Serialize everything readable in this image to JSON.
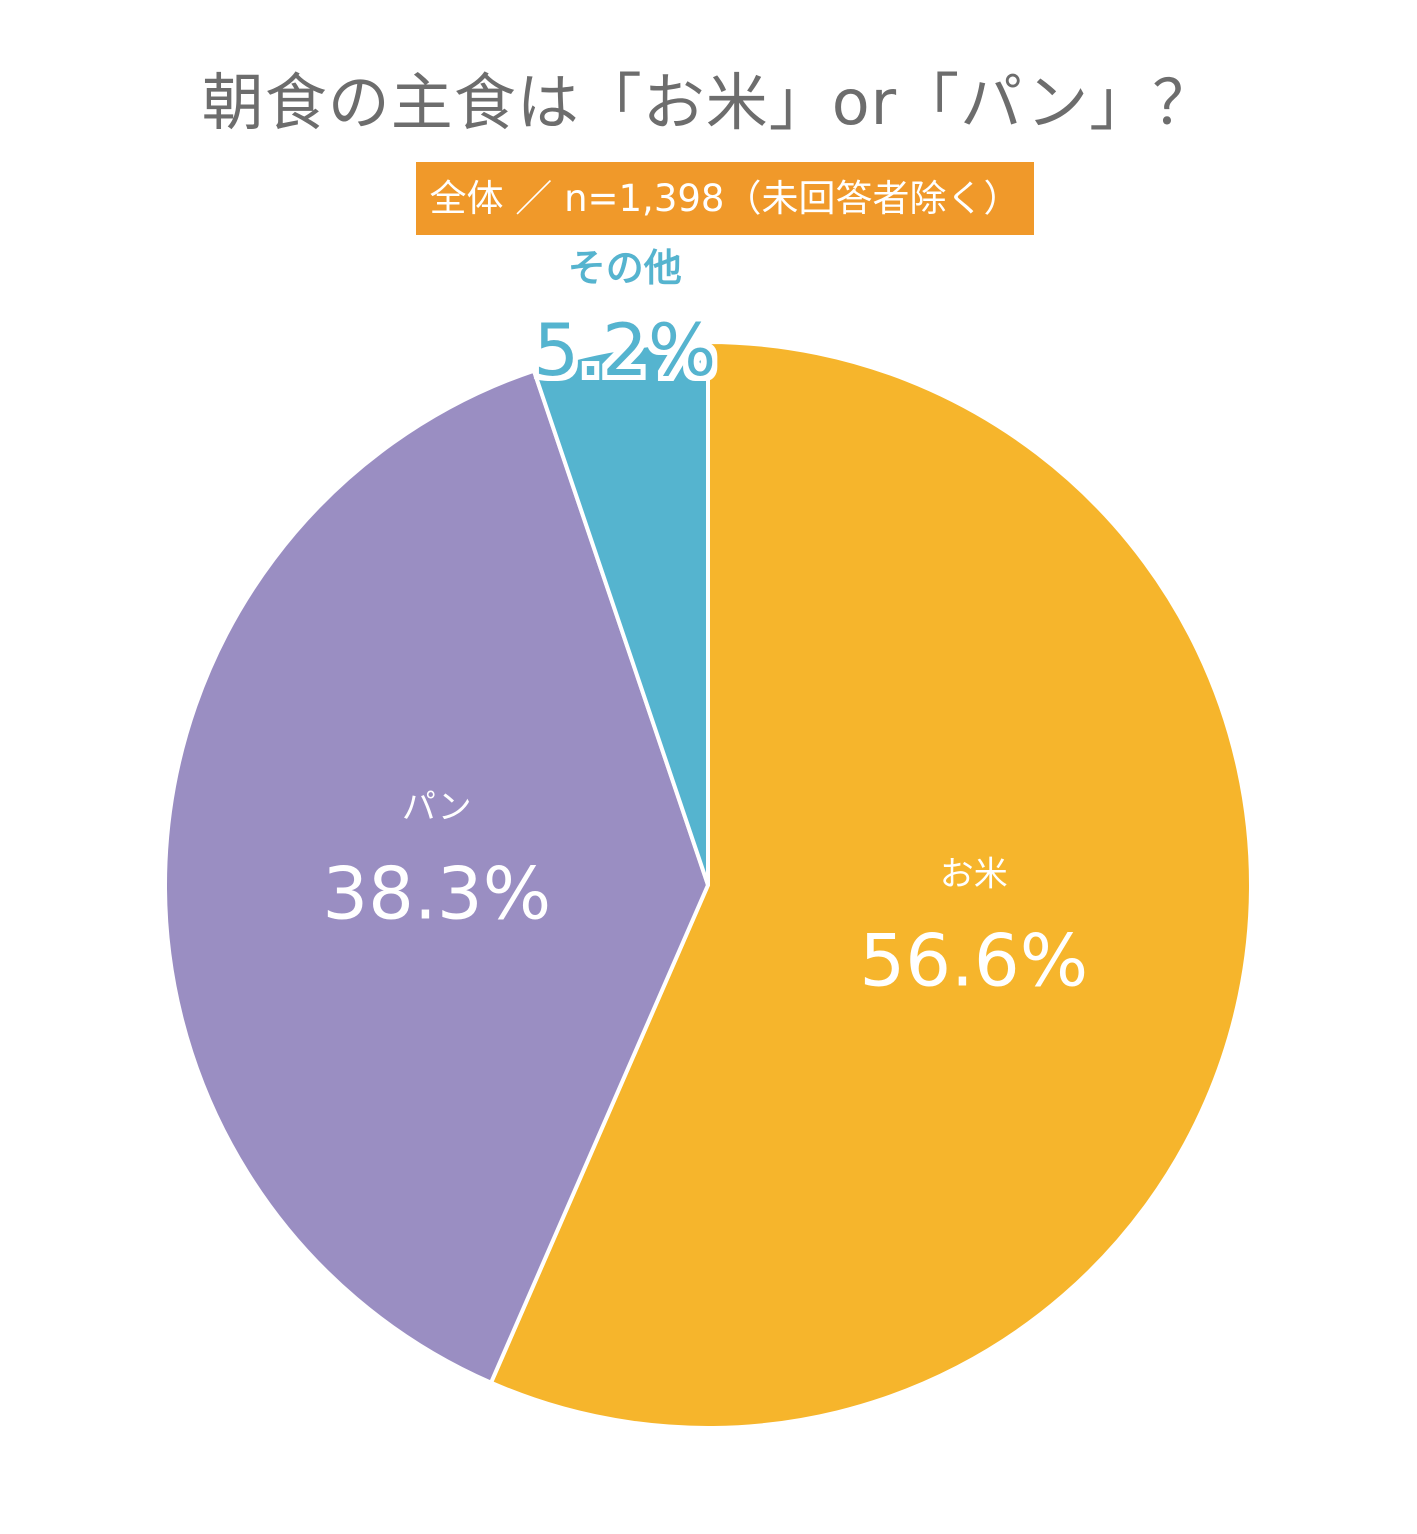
{
  "title": "朝食の主食は「お米」or「パン」？",
  "subtitle": "全体 ／ n=1,398（未回答者除く）",
  "chart_data": {
    "type": "pie",
    "title": "朝食の主食は「お米」or「パン」？",
    "subtitle": "全体 ／ n=1,398（未回答者除く）",
    "slices": [
      {
        "label": "お米",
        "value": 56.6,
        "display": "56.6%",
        "color": "#f6b52c"
      },
      {
        "label": "パン",
        "value": 38.3,
        "display": "38.3%",
        "color": "#9a8ec2"
      },
      {
        "label": "その他",
        "value": 5.2,
        "display": "5.2%",
        "color": "#55b4cf"
      }
    ],
    "start": "12 o'clock",
    "direction": "clockwise",
    "legend": "none"
  },
  "colors": {
    "title_text": "#6d6d6d",
    "subtitle_badge": "#f0992a",
    "slice_border": "#ffffff"
  }
}
